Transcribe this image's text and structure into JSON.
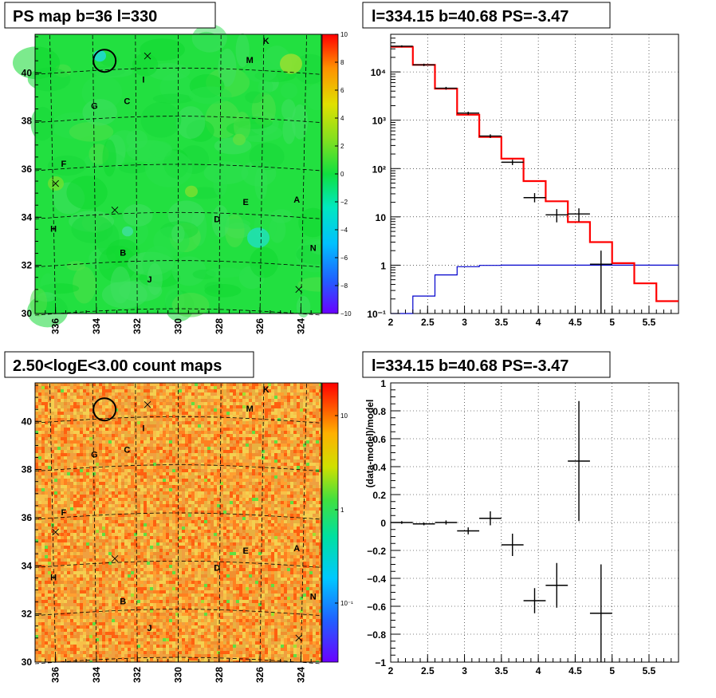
{
  "panels": {
    "ps_map": {
      "title": "PS map b=36 l=330",
      "xticks": [
        "336",
        "334",
        "332",
        "330",
        "328",
        "326",
        "324"
      ],
      "yticks": [
        "30",
        "32",
        "34",
        "36",
        "38",
        "40"
      ],
      "palette_labels": [
        "10",
        "8",
        "6",
        "4",
        "2",
        "0",
        "−2",
        "−4",
        "−6",
        "−8",
        "−10"
      ]
    },
    "count_map": {
      "title": "2.50<logE<3.00 count maps",
      "xticks": [
        "336",
        "334",
        "332",
        "330",
        "328",
        "326",
        "324"
      ],
      "yticks": [
        "30",
        "32",
        "34",
        "36",
        "38",
        "40"
      ],
      "palette_labels": [
        "10",
        "1",
        "10⁻¹"
      ]
    },
    "spectrum": {
      "title": "l=334.15 b=40.68 PS=-3.47"
    },
    "residual": {
      "title": "l=334.15 b=40.68 PS=-3.47",
      "ylabel": "(data-model)/model"
    }
  },
  "sources": [
    "K",
    "M",
    "I",
    "G",
    "C",
    "F",
    "E",
    "A",
    "D",
    "H",
    "B",
    "N",
    "J"
  ],
  "colors": {
    "model_red": "#ff0000",
    "background_blue": "#0000cc",
    "data_black": "#000000"
  },
  "chart_data": [
    {
      "type": "heatmap",
      "title": "PS map b=36 l=330",
      "xlim": [
        337,
        323
      ],
      "ylim": [
        30,
        41.6
      ],
      "zlim": [
        -10,
        10
      ],
      "colorbar_ticks": [
        10,
        8,
        6,
        4,
        2,
        0,
        -2,
        -4,
        -6,
        -8,
        -10
      ],
      "sources": [
        {
          "label": "K",
          "l": 325.7,
          "b": 41.2
        },
        {
          "label": "M",
          "l": 326.5,
          "b": 40.4
        },
        {
          "label": "I",
          "l": 331.7,
          "b": 39.6
        },
        {
          "label": "G",
          "l": 334.1,
          "b": 38.5
        },
        {
          "label": "C",
          "l": 332.5,
          "b": 38.7
        },
        {
          "label": "F",
          "l": 335.6,
          "b": 36.1
        },
        {
          "label": "E",
          "l": 326.7,
          "b": 34.5
        },
        {
          "label": "A",
          "l": 324.2,
          "b": 34.6
        },
        {
          "label": "D",
          "l": 328.1,
          "b": 33.8
        },
        {
          "label": "H",
          "l": 336.1,
          "b": 33.4
        },
        {
          "label": "B",
          "l": 332.7,
          "b": 32.4
        },
        {
          "label": "N",
          "l": 323.4,
          "b": 32.6
        },
        {
          "label": "J",
          "l": 331.4,
          "b": 31.3
        }
      ],
      "crosses": [
        {
          "l": 331.5,
          "b": 40.7
        },
        {
          "l": 336.0,
          "b": 35.4
        },
        {
          "l": 333.1,
          "b": 34.3
        },
        {
          "l": 324.1,
          "b": 31.0
        }
      ],
      "circle": {
        "l": 333.6,
        "b": 40.5
      }
    },
    {
      "type": "heatmap",
      "title": "2.50<logE<3.00 count maps",
      "xlim": [
        337,
        323
      ],
      "ylim": [
        30,
        41.6
      ],
      "zscale": "log",
      "colorbar_ticks": [
        "10",
        "1",
        "10⁻¹"
      ]
    },
    {
      "type": "line",
      "title": "l=334.15 b=40.68 PS=-3.47",
      "xlabel": "",
      "ylabel": "",
      "xlim": [
        2,
        5.9
      ],
      "ylim": [
        0.1,
        60000
      ],
      "yscale": "log",
      "xticks": [
        "2",
        "2.5",
        "3",
        "3.5",
        "4",
        "4.5",
        "5",
        "5.5"
      ],
      "yticks": [
        "10⁻¹",
        "1",
        "10",
        "10²",
        "10³",
        "10⁴"
      ],
      "grid": true,
      "series": [
        {
          "bin_edges": [
            2.0,
            2.3,
            2.6,
            2.9,
            3.2,
            3.5,
            3.8,
            4.1,
            4.4,
            4.7,
            5.0,
            5.3,
            5.6,
            5.9
          ],
          "values": [
            33000,
            14000,
            4500,
            1300,
            450,
            160,
            55,
            21,
            7.8,
            3.0,
            1.1,
            0.42,
            0.18
          ]
        },
        {
          "bin_edges": [
            2.0,
            2.3,
            2.6,
            2.9,
            3.2,
            3.5,
            3.8,
            4.1,
            4.4,
            4.7,
            5.0,
            5.3,
            5.6,
            5.9
          ],
          "values": [
            0.08,
            0.23,
            0.63,
            0.93,
            0.99,
            1.0,
            1.0,
            1.0,
            1.0,
            1.0,
            1.0,
            1.0,
            1.0
          ]
        },
        {
          "points": [
            {
              "x": 2.15,
              "y": 34000,
              "xerr": 0.15,
              "ylo": 32500,
              "yhi": 35500
            },
            {
              "x": 2.45,
              "y": 14000,
              "xerr": 0.15,
              "ylo": 13200,
              "yhi": 14800
            },
            {
              "x": 2.75,
              "y": 4600,
              "xerr": 0.15,
              "ylo": 4300,
              "yhi": 4900
            },
            {
              "x": 3.05,
              "y": 1400,
              "xerr": 0.15,
              "ylo": 1300,
              "yhi": 1500
            },
            {
              "x": 3.35,
              "y": 470,
              "xerr": 0.15,
              "ylo": 430,
              "yhi": 510
            },
            {
              "x": 3.65,
              "y": 135,
              "xerr": 0.15,
              "ylo": 118,
              "yhi": 152
            },
            {
              "x": 3.95,
              "y": 25,
              "xerr": 0.15,
              "ylo": 20,
              "yhi": 31
            },
            {
              "x": 4.25,
              "y": 11,
              "xerr": 0.15,
              "ylo": 7.7,
              "yhi": 14.5
            },
            {
              "x": 4.55,
              "y": 11.5,
              "xerr": 0.15,
              "ylo": 8,
              "yhi": 15
            },
            {
              "x": 4.85,
              "y": 1.05,
              "xerr": 0.15,
              "ylo": 0.1,
              "yhi": 2.0
            }
          ]
        }
      ]
    },
    {
      "type": "scatter",
      "title": "l=334.15 b=40.68 PS=-3.47",
      "xlabel": "",
      "ylabel": "(data-model)/model",
      "xlim": [
        2,
        5.9
      ],
      "ylim": [
        -1,
        1
      ],
      "xticks": [
        "2",
        "2.5",
        "3",
        "3.5",
        "4",
        "4.5",
        "5",
        "5.5"
      ],
      "yticks": [
        "−1",
        "−0.8",
        "−0.6",
        "−0.4",
        "−0.2",
        "0",
        "0.2",
        "0.4",
        "0.6",
        "0.8",
        "1"
      ],
      "grid": true,
      "points": [
        {
          "x": 2.15,
          "y": 0.0,
          "xerr": 0.15,
          "yerr": 0.01
        },
        {
          "x": 2.45,
          "y": -0.01,
          "xerr": 0.15,
          "yerr": 0.01
        },
        {
          "x": 2.75,
          "y": 0.0,
          "xerr": 0.15,
          "yerr": 0.015
        },
        {
          "x": 3.05,
          "y": -0.06,
          "xerr": 0.15,
          "yerr": 0.025
        },
        {
          "x": 3.35,
          "y": 0.03,
          "xerr": 0.15,
          "yerr": 0.05
        },
        {
          "x": 3.65,
          "y": -0.16,
          "xerr": 0.15,
          "yerr": 0.08
        },
        {
          "x": 3.95,
          "y": -0.56,
          "xerr": 0.15,
          "yerr": 0.09
        },
        {
          "x": 4.25,
          "y": -0.45,
          "xerr": 0.15,
          "yerr": 0.16
        },
        {
          "x": 4.55,
          "y": 0.44,
          "xerr": 0.15,
          "yerr": 0.43
        },
        {
          "x": 4.85,
          "y": -0.65,
          "xerr": 0.15,
          "yerr": 0.35
        }
      ]
    }
  ]
}
